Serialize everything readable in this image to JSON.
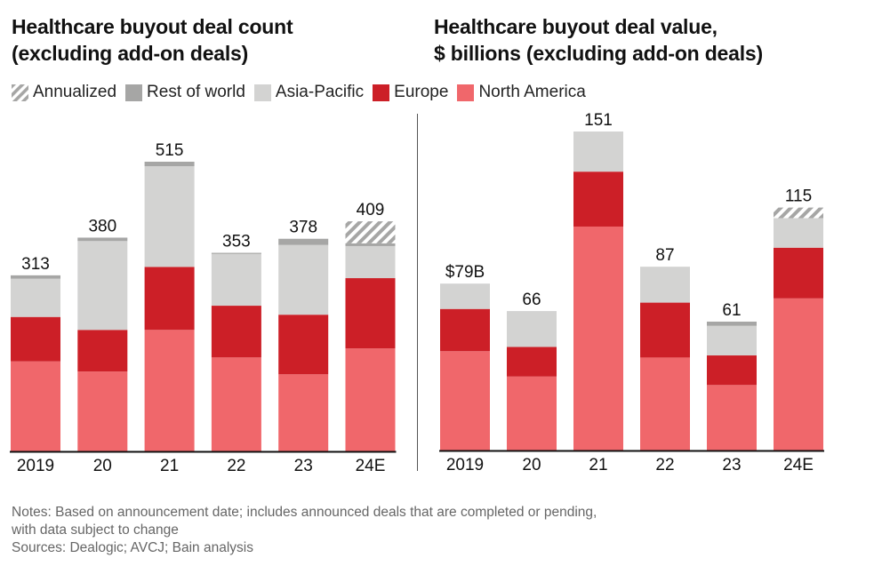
{
  "titles": {
    "left_line1": "Healthcare buyout deal count",
    "left_line2": "(excluding add-on deals)",
    "right_line1": "Healthcare buyout deal value,",
    "right_line2": "$ billions (excluding add-on deals)"
  },
  "legend": [
    {
      "label": "Annualized",
      "key": "annualized",
      "color": "#a6a6a5",
      "pattern": "hatched"
    },
    {
      "label": "Rest of world",
      "key": "rest_of_world",
      "color": "#a6a6a5"
    },
    {
      "label": "Asia-Pacific",
      "key": "asia_pacific",
      "color": "#d3d3d2"
    },
    {
      "label": "Europe",
      "key": "europe",
      "color": "#cc1f27"
    },
    {
      "label": "North America",
      "key": "north_america",
      "color": "#f0676b"
    }
  ],
  "notes": {
    "line1": "Notes: Based on announcement date; includes announced deals that are completed or pending,",
    "line2": "with data subject to change",
    "line3": "Sources: Dealogic; AVCJ; Bain analysis"
  },
  "chart_data": [
    {
      "type": "bar",
      "stacked": true,
      "title": "Healthcare buyout deal count (excluding add-on deals)",
      "xlabel": "",
      "ylabel": "",
      "categories": [
        "2019",
        "20",
        "21",
        "22",
        "23",
        "24E"
      ],
      "totals": [
        313,
        380,
        515,
        353,
        378,
        409
      ],
      "total_labels": [
        "313",
        "380",
        "515",
        "353",
        "378",
        "409"
      ],
      "ylim": [
        0,
        515
      ],
      "grid": false,
      "legend_position": "top-left",
      "series": [
        {
          "name": "North America",
          "key": "north_america",
          "values": [
            160,
            142,
            216,
            167,
            137,
            183
          ]
        },
        {
          "name": "Europe",
          "key": "europe",
          "values": [
            79,
            74,
            112,
            92,
            106,
            125
          ]
        },
        {
          "name": "Asia-Pacific",
          "key": "asia_pacific",
          "values": [
            68,
            158,
            179,
            92,
            124,
            57
          ]
        },
        {
          "name": "Rest of world",
          "key": "rest_of_world",
          "values": [
            6,
            6,
            8,
            2,
            11,
            5
          ]
        },
        {
          "name": "Annualized",
          "key": "annualized",
          "values": [
            0,
            0,
            0,
            0,
            0,
            39
          ]
        }
      ]
    },
    {
      "type": "bar",
      "stacked": true,
      "title": "Healthcare buyout deal value, $ billions (excluding add-on deals)",
      "xlabel": "",
      "ylabel": "",
      "categories": [
        "2019",
        "20",
        "21",
        "22",
        "23",
        "24E"
      ],
      "totals": [
        79,
        66,
        151,
        87,
        61,
        115
      ],
      "total_labels": [
        "$79B",
        "66",
        "151",
        "87",
        "61",
        "115"
      ],
      "ylim": [
        0,
        151
      ],
      "grid": false,
      "legend_position": "top-left",
      "series": [
        {
          "name": "North America",
          "key": "north_america",
          "values": [
            47,
            35,
            106,
            44,
            31,
            72
          ]
        },
        {
          "name": "Europe",
          "key": "europe",
          "values": [
            20,
            14,
            26,
            26,
            14,
            24
          ]
        },
        {
          "name": "Asia-Pacific",
          "key": "asia_pacific",
          "values": [
            12,
            17,
            19,
            17,
            14,
            14
          ]
        },
        {
          "name": "Rest of world",
          "key": "rest_of_world",
          "values": [
            0,
            0,
            0,
            0,
            2,
            0
          ]
        },
        {
          "name": "Annualized",
          "key": "annualized",
          "values": [
            0,
            0,
            0,
            0,
            0,
            5
          ]
        }
      ]
    }
  ]
}
